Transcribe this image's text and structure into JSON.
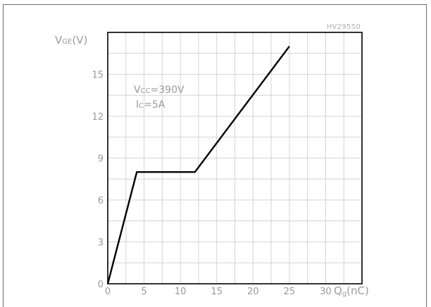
{
  "chart_data": {
    "type": "line",
    "reference": "HV29550",
    "ylabel": "V",
    "ylabel_sub": "GE",
    "ylabel_unit": "(V)",
    "xlabel": "Q",
    "xlabel_sub": "g",
    "xlabel_unit": "(nC)",
    "annotation_line1_main": "V",
    "annotation_line1_sub": "CC",
    "annotation_line1_rest": "=390V",
    "annotation_line2_main": "I",
    "annotation_line2_sub": "C",
    "annotation_line2_rest": "=5A",
    "xlim": [
      0,
      35
    ],
    "ylim": [
      0,
      18
    ],
    "x_grid_step": 2.5,
    "y_grid_step": 1.5,
    "x_ticks": [
      {
        "value": 0,
        "label": "0"
      },
      {
        "value": 5,
        "label": "5"
      },
      {
        "value": 10,
        "label": "10"
      },
      {
        "value": 15,
        "label": "15"
      },
      {
        "value": 20,
        "label": "20"
      },
      {
        "value": 25,
        "label": "25"
      },
      {
        "value": 30,
        "label": "30"
      }
    ],
    "y_ticks": [
      {
        "value": 0,
        "label": "0"
      },
      {
        "value": 3,
        "label": "3"
      },
      {
        "value": 6,
        "label": "6"
      },
      {
        "value": 9,
        "label": "9"
      },
      {
        "value": 12,
        "label": "12"
      },
      {
        "value": 15,
        "label": "15"
      }
    ],
    "series": [
      {
        "x": [
          0,
          4,
          12,
          25
        ],
        "y": [
          0,
          8,
          8,
          17
        ]
      }
    ],
    "line_color": "#000000",
    "grid_color": "#d4d4d4",
    "axis_color": "#000000",
    "label_color": "#9a9a9a"
  }
}
